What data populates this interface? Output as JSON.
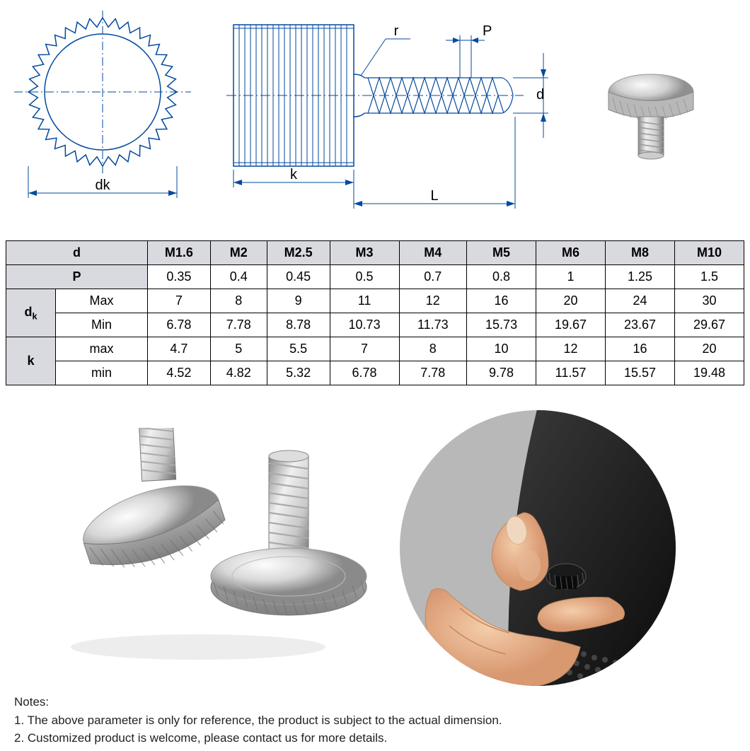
{
  "diagrams": {
    "top_view": {
      "dk_label": "dk"
    },
    "side_view": {
      "r_label": "r",
      "p_label": "P",
      "d_label": "d",
      "k_label": "k",
      "L_label": "L"
    }
  },
  "table": {
    "header_d": "d",
    "header_P": "P",
    "header_dk": "d",
    "header_dk_sub": "k",
    "header_k": "k",
    "sub_max1": "Max",
    "sub_min1": "Min",
    "sub_max2": "max",
    "sub_min2": "min",
    "columns": [
      "M1.6",
      "M2",
      "M2.5",
      "M3",
      "M4",
      "M5",
      "M6",
      "M8",
      "M10"
    ],
    "rows": {
      "P": [
        "0.35",
        "0.4",
        "0.45",
        "0.5",
        "0.7",
        "0.8",
        "1",
        "1.25",
        "1.5"
      ],
      "dk_max": [
        "7",
        "8",
        "9",
        "11",
        "12",
        "16",
        "20",
        "24",
        "30"
      ],
      "dk_min": [
        "6.78",
        "7.78",
        "8.78",
        "10.73",
        "11.73",
        "15.73",
        "19.67",
        "23.67",
        "29.67"
      ],
      "k_max": [
        "4.7",
        "5",
        "5.5",
        "7",
        "8",
        "10",
        "12",
        "16",
        "20"
      ],
      "k_min": [
        "4.52",
        "4.82",
        "5.32",
        "6.78",
        "7.78",
        "9.78",
        "11.57",
        "15.57",
        "19.48"
      ]
    },
    "header_bg": "#d9d9e0",
    "border_color": "#000000",
    "font_size": 18
  },
  "notes": {
    "title": "Notes:",
    "line1": "1. The above parameter is only for reference, the product is subject to the actual dimension.",
    "line2": "2. Customized product is welcome, please contact us for more details."
  },
  "colors": {
    "line": "#024a9e",
    "metal_light": "#e8e8e8",
    "metal_mid": "#c0c0c0",
    "metal_dark": "#888888",
    "skin": "#e8b896",
    "black": "#1a1a1a"
  }
}
